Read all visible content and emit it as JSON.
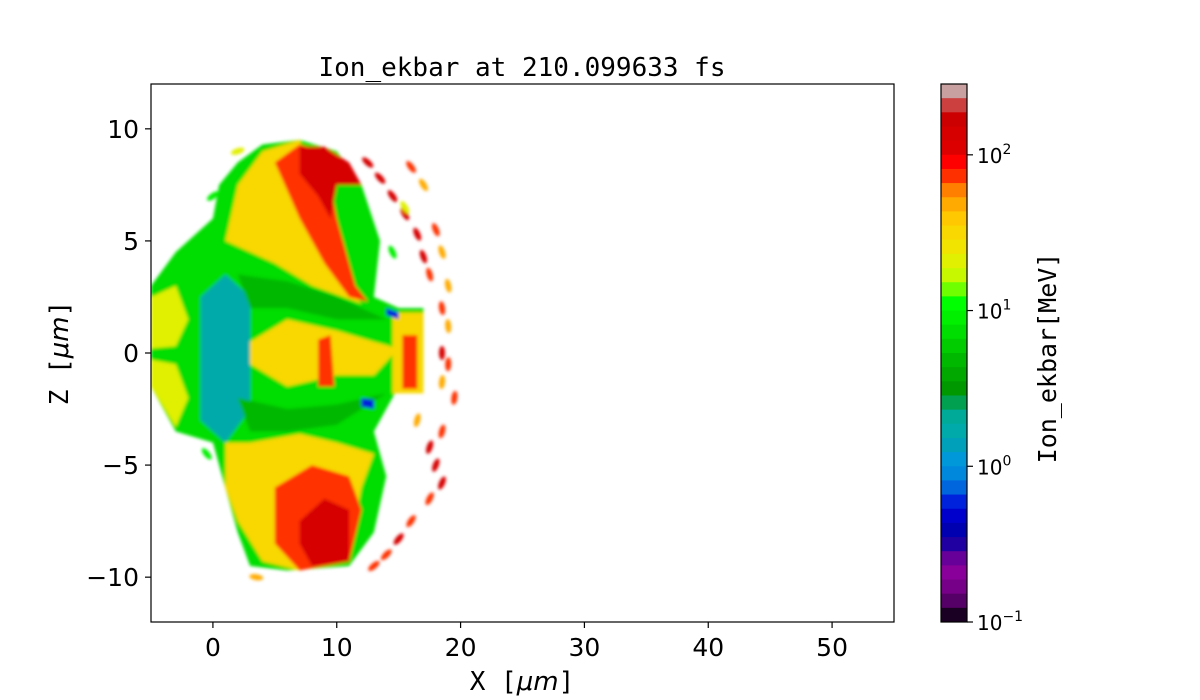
{
  "chart_data": {
    "type": "heatmap",
    "title": "Ion_ekbar at 210.099633 fs",
    "xlabel": "X  [$\\mu m$]",
    "xlabel_text": "X  [",
    "xlabel_unit": "μm",
    "ylabel_text": "Z  [",
    "ylabel_unit": "μm",
    "xlim": [
      -5,
      55
    ],
    "ylim": [
      -12,
      12
    ],
    "xticks": [
      0,
      10,
      20,
      30,
      40,
      50
    ],
    "yticks": [
      -10,
      -5,
      0,
      5,
      10
    ],
    "xtick_labels": [
      "0",
      "10",
      "20",
      "30",
      "40",
      "50"
    ],
    "ytick_labels": [
      "−10",
      "−5",
      "0",
      "5",
      "10"
    ],
    "colorbar": {
      "label": "Ion_ekbar[MeV]",
      "scale": "log",
      "range": [
        0.1,
        285
      ],
      "ticks": [
        100,
        10,
        1,
        0.1
      ],
      "tick_labels": [
        {
          "base": "10",
          "exp": "2"
        },
        {
          "base": "10",
          "exp": "1"
        },
        {
          "base": "10",
          "exp": "0"
        },
        {
          "base": "10",
          "exp": "−1"
        }
      ],
      "colors_top_to_bottom": [
        "#c8a0a0",
        "#cc4040",
        "#cc0000",
        "#d60000",
        "#dd0000",
        "#ff0000",
        "#ff3000",
        "#ff8000",
        "#ffaa00",
        "#ffc800",
        "#f8d800",
        "#f0e400",
        "#e0f000",
        "#c8f800",
        "#70ff00",
        "#00ff00",
        "#00f000",
        "#00dd00",
        "#00cc00",
        "#00b800",
        "#00a800",
        "#009800",
        "#00a050",
        "#00aa99",
        "#00aaaa",
        "#00a0bb",
        "#0098d8",
        "#0088dd",
        "#0066dd",
        "#0022dd",
        "#0000cc",
        "#0000b0",
        "#2000a0",
        "#660099",
        "#880099",
        "#770088",
        "#550066",
        "#1a0022"
      ]
    },
    "regions": [
      {
        "value": 8,
        "points": [
          [
            -5,
            3
          ],
          [
            -3,
            4.5
          ],
          [
            0,
            6
          ],
          [
            0.5,
            7.5
          ],
          [
            2,
            8.5
          ],
          [
            4,
            9.3
          ],
          [
            7,
            9.5
          ],
          [
            10,
            9
          ],
          [
            12,
            7.5
          ],
          [
            13.5,
            5
          ],
          [
            13,
            2.5
          ],
          [
            15,
            2
          ],
          [
            17,
            2
          ],
          [
            17,
            -1.5
          ],
          [
            15,
            -1.5
          ],
          [
            13,
            -3.5
          ],
          [
            14,
            -5.5
          ],
          [
            13,
            -8
          ],
          [
            11,
            -9.5
          ],
          [
            6,
            -9.7
          ],
          [
            3,
            -9.5
          ],
          [
            2,
            -8
          ],
          [
            1,
            -6
          ],
          [
            0,
            -4
          ],
          [
            -3,
            -3.5
          ],
          [
            -5,
            -1.5
          ]
        ]
      },
      {
        "value": 20,
        "points": [
          [
            -5,
            2.5
          ],
          [
            -3,
            3
          ],
          [
            -2,
            1.5
          ],
          [
            -3,
            0.3
          ],
          [
            -5,
            0.2
          ]
        ]
      },
      {
        "value": 20,
        "points": [
          [
            -5,
            -0.3
          ],
          [
            -3,
            -0.5
          ],
          [
            -2,
            -2
          ],
          [
            -3,
            -3.3
          ],
          [
            -5,
            -1.5
          ]
        ]
      },
      {
        "value": 1.6,
        "points": [
          [
            -1,
            2.5
          ],
          [
            1,
            3.5
          ],
          [
            3,
            2.5
          ],
          [
            3,
            -2.5
          ],
          [
            1,
            -4
          ],
          [
            -1,
            -3
          ]
        ]
      },
      {
        "value": 5,
        "points": [
          [
            2,
            3.5
          ],
          [
            6,
            3.2
          ],
          [
            10,
            2.5
          ],
          [
            14,
            1.5
          ],
          [
            10,
            1.5
          ],
          [
            6,
            2
          ],
          [
            3,
            2
          ]
        ]
      },
      {
        "value": 5,
        "points": [
          [
            2,
            -2
          ],
          [
            6,
            -2.5
          ],
          [
            10,
            -2.3
          ],
          [
            14,
            -1.8
          ],
          [
            10,
            -3.2
          ],
          [
            6,
            -3.5
          ],
          [
            3,
            -3.5
          ]
        ]
      },
      {
        "value": 35,
        "points": [
          [
            1,
            5
          ],
          [
            2,
            7.5
          ],
          [
            4,
            9
          ],
          [
            7,
            9.5
          ],
          [
            8,
            8
          ],
          [
            10,
            5
          ],
          [
            11,
            3
          ],
          [
            12,
            2.2
          ],
          [
            8,
            3
          ],
          [
            5,
            4
          ],
          [
            3,
            4.5
          ]
        ]
      },
      {
        "value": 70,
        "points": [
          [
            5,
            8.5
          ],
          [
            7,
            9.3
          ],
          [
            9,
            9
          ],
          [
            10,
            6
          ],
          [
            11.5,
            3
          ],
          [
            12.5,
            2.3
          ],
          [
            11,
            2.5
          ],
          [
            9,
            4
          ],
          [
            7,
            6
          ]
        ]
      },
      {
        "value": 150,
        "points": [
          [
            7,
            9.2
          ],
          [
            9,
            9.2
          ],
          [
            11,
            8.5
          ],
          [
            12,
            7.5
          ],
          [
            10,
            7.5
          ],
          [
            9.5,
            6
          ],
          [
            8.5,
            7
          ],
          [
            7,
            8
          ]
        ]
      },
      {
        "value": 35,
        "points": [
          [
            1,
            -4
          ],
          [
            3,
            -4
          ],
          [
            7,
            -3.6
          ],
          [
            10,
            -4
          ],
          [
            13,
            -4.5
          ],
          [
            12,
            -6
          ],
          [
            11,
            -9
          ],
          [
            7,
            -9.7
          ],
          [
            4,
            -9.3
          ],
          [
            2,
            -7.5
          ],
          [
            1,
            -6
          ]
        ]
      },
      {
        "value": 70,
        "points": [
          [
            5,
            -6
          ],
          [
            8,
            -5
          ],
          [
            11,
            -5.5
          ],
          [
            12,
            -7
          ],
          [
            11,
            -9.3
          ],
          [
            7,
            -9.7
          ],
          [
            5,
            -8.5
          ]
        ]
      },
      {
        "value": 150,
        "points": [
          [
            7,
            -7.5
          ],
          [
            9,
            -6.5
          ],
          [
            11,
            -7
          ],
          [
            11,
            -9.3
          ],
          [
            8,
            -9.5
          ],
          [
            7,
            -8.5
          ]
        ]
      },
      {
        "value": 30,
        "points": [
          [
            3,
            0.5
          ],
          [
            6,
            1.5
          ],
          [
            10,
            1
          ],
          [
            13,
            0.5
          ],
          [
            15,
            0.2
          ],
          [
            13,
            -1
          ],
          [
            10,
            -1
          ],
          [
            6,
            -1.5
          ],
          [
            3,
            -0.5
          ]
        ]
      },
      {
        "value": 30,
        "points": [
          [
            14.5,
            1.8
          ],
          [
            17,
            1.8
          ],
          [
            17,
            -1.8
          ],
          [
            14.5,
            -1.8
          ]
        ]
      },
      {
        "value": 80,
        "points": [
          [
            8.5,
            0.6
          ],
          [
            9.5,
            0.8
          ],
          [
            9.8,
            -1.5
          ],
          [
            8.5,
            -1.5
          ]
        ]
      },
      {
        "value": 70,
        "points": [
          [
            15.3,
            0.8
          ],
          [
            16.5,
            0.8
          ],
          [
            16.5,
            -1.6
          ],
          [
            15.3,
            -1.6
          ]
        ]
      },
      {
        "value": 0.6,
        "points": [
          [
            12,
            -2
          ],
          [
            13,
            -2.1
          ],
          [
            13,
            -2.5
          ],
          [
            12,
            -2.4
          ]
        ]
      },
      {
        "value": 0.6,
        "points": [
          [
            14,
            2
          ],
          [
            15,
            1.8
          ],
          [
            15,
            1.5
          ],
          [
            14,
            1.7
          ]
        ]
      }
    ],
    "fragments": [
      [
        12.5,
        8.5,
        150
      ],
      [
        13.5,
        7.8,
        150
      ],
      [
        14.5,
        7,
        150
      ],
      [
        15.5,
        6.2,
        150
      ],
      [
        16.5,
        5.3,
        150
      ],
      [
        17,
        4.3,
        150
      ],
      [
        17.5,
        3.5,
        80
      ],
      [
        16,
        8.3,
        80
      ],
      [
        17,
        7.5,
        50
      ],
      [
        18,
        5.5,
        80
      ],
      [
        18.5,
        4.5,
        50
      ],
      [
        19,
        3,
        50
      ],
      [
        18.5,
        2,
        80
      ],
      [
        19,
        1.2,
        50
      ],
      [
        18.5,
        0,
        150
      ],
      [
        19,
        -0.5,
        80
      ],
      [
        18.5,
        -1.3,
        50
      ],
      [
        19.5,
        -2,
        80
      ],
      [
        18.5,
        -3.5,
        80
      ],
      [
        17.5,
        -4.2,
        150
      ],
      [
        18,
        -5,
        150
      ],
      [
        18.5,
        -5.8,
        150
      ],
      [
        17.5,
        -6.5,
        80
      ],
      [
        16,
        -7.5,
        80
      ],
      [
        15,
        -8.3,
        150
      ],
      [
        14,
        -9,
        80
      ],
      [
        13,
        -9.5,
        80
      ],
      [
        16.5,
        -3,
        50
      ],
      [
        15.5,
        6.5,
        20
      ],
      [
        14.5,
        4.5,
        10
      ],
      [
        3.5,
        -10,
        50
      ],
      [
        2,
        9,
        20
      ],
      [
        0,
        7,
        10
      ],
      [
        -0.5,
        -4.5,
        10
      ]
    ]
  }
}
